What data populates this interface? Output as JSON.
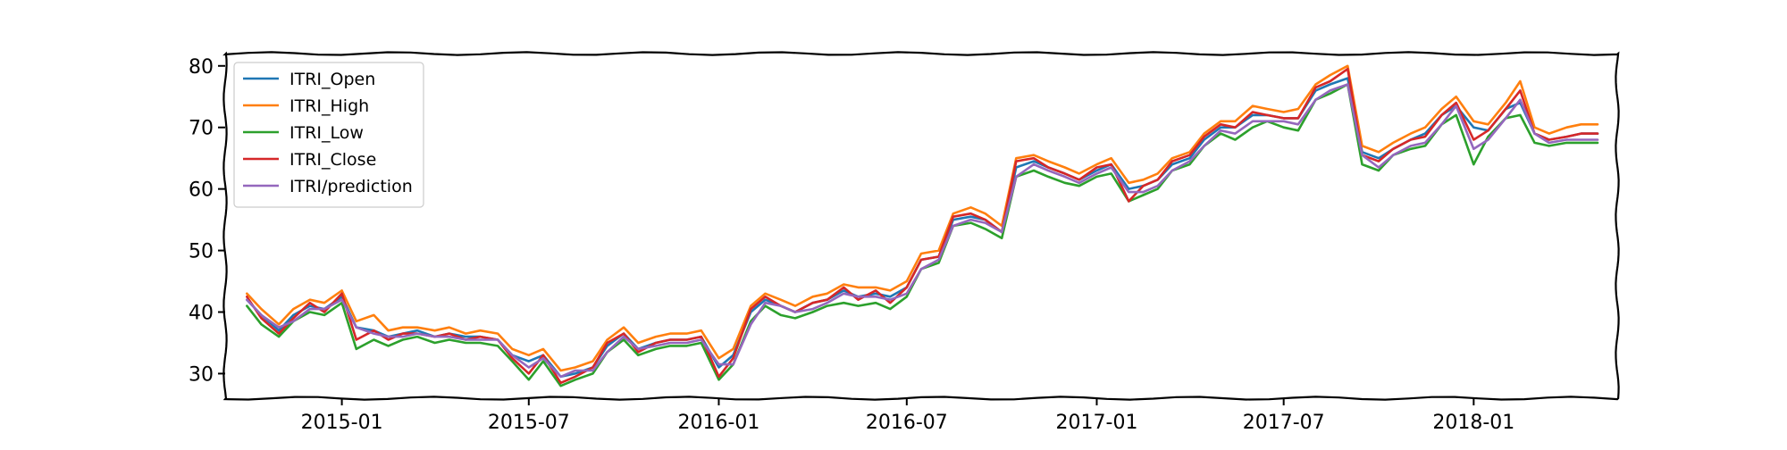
{
  "chart_data": {
    "type": "line",
    "title": "",
    "xlabel": "",
    "ylabel": "",
    "xlim": [
      "2014-09-10",
      "2018-05-20"
    ],
    "ylim": [
      26,
      82
    ],
    "grid": false,
    "legend_position": "top-left",
    "x_tick_labels": [
      "2015-01",
      "2015-07",
      "2016-01",
      "2016-07",
      "2017-01",
      "2017-07",
      "2018-01"
    ],
    "y_tick_labels": [
      "30",
      "40",
      "50",
      "60",
      "70",
      "80"
    ],
    "y_ticks": [
      30,
      40,
      50,
      60,
      70,
      80
    ],
    "colors": {
      "ITRI_Open": "#1f77b4",
      "ITRI_High": "#ff7f0e",
      "ITRI_Low": "#2ca02c",
      "ITRI_Close": "#d62728",
      "ITRI/prediction": "#9467bd"
    },
    "series": [
      {
        "name": "ITRI_Open",
        "x": [
          "2014-10-01",
          "2014-10-15",
          "2014-11-01",
          "2014-11-15",
          "2014-12-01",
          "2014-12-15",
          "2015-01-01",
          "2015-01-15",
          "2015-02-01",
          "2015-02-15",
          "2015-03-01",
          "2015-03-15",
          "2015-04-01",
          "2015-04-15",
          "2015-05-01",
          "2015-05-15",
          "2015-06-01",
          "2015-06-15",
          "2015-07-01",
          "2015-07-15",
          "2015-08-01",
          "2015-08-15",
          "2015-09-01",
          "2015-09-15",
          "2015-10-01",
          "2015-10-15",
          "2015-11-01",
          "2015-11-15",
          "2015-12-01",
          "2015-12-15",
          "2016-01-01",
          "2016-01-15",
          "2016-02-01",
          "2016-02-15",
          "2016-03-01",
          "2016-03-15",
          "2016-04-01",
          "2016-04-15",
          "2016-05-01",
          "2016-05-15",
          "2016-06-01",
          "2016-06-15",
          "2016-07-01",
          "2016-07-15",
          "2016-08-01",
          "2016-08-15",
          "2016-09-01",
          "2016-09-15",
          "2016-10-01",
          "2016-10-15",
          "2016-11-01",
          "2016-11-15",
          "2016-12-01",
          "2016-12-15",
          "2017-01-01",
          "2017-01-15",
          "2017-02-01",
          "2017-02-15",
          "2017-03-01",
          "2017-03-15",
          "2017-04-01",
          "2017-04-15",
          "2017-05-01",
          "2017-05-15",
          "2017-06-01",
          "2017-06-15",
          "2017-07-01",
          "2017-07-15",
          "2017-08-01",
          "2017-08-15",
          "2017-09-01",
          "2017-09-15",
          "2017-10-01",
          "2017-10-15",
          "2017-11-01",
          "2017-11-15",
          "2017-12-01",
          "2017-12-15",
          "2018-01-01",
          "2018-01-15",
          "2018-02-01",
          "2018-02-15",
          "2018-03-01",
          "2018-03-15",
          "2018-04-01",
          "2018-04-15",
          "2018-05-01"
        ],
        "values": [
          42.0,
          39.5,
          37.0,
          39.5,
          41.0,
          40.5,
          42.5,
          37.5,
          37.0,
          36.0,
          36.5,
          37.0,
          36.0,
          36.5,
          36.0,
          36.0,
          35.5,
          33.0,
          32.0,
          33.0,
          29.5,
          30.0,
          31.0,
          34.5,
          36.5,
          34.0,
          35.0,
          35.5,
          35.5,
          36.0,
          31.0,
          33.0,
          40.0,
          42.0,
          41.0,
          40.0,
          41.5,
          42.0,
          43.5,
          42.5,
          43.0,
          42.5,
          44.0,
          48.5,
          49.0,
          55.0,
          55.5,
          55.0,
          53.0,
          63.5,
          64.5,
          63.5,
          62.5,
          61.5,
          63.0,
          64.0,
          60.0,
          60.5,
          61.5,
          64.0,
          65.0,
          68.0,
          70.0,
          70.0,
          72.0,
          72.0,
          71.5,
          71.5,
          76.0,
          77.0,
          78.0,
          66.0,
          65.0,
          66.5,
          68.0,
          69.0,
          72.0,
          73.5,
          70.0,
          69.5,
          73.0,
          74.0,
          69.0,
          68.0,
          68.5,
          69.0,
          69.0
        ]
      },
      {
        "name": "ITRI_High",
        "x": [
          "2014-10-01",
          "2014-10-15",
          "2014-11-01",
          "2014-11-15",
          "2014-12-01",
          "2014-12-15",
          "2015-01-01",
          "2015-01-15",
          "2015-02-01",
          "2015-02-15",
          "2015-03-01",
          "2015-03-15",
          "2015-04-01",
          "2015-04-15",
          "2015-05-01",
          "2015-05-15",
          "2015-06-01",
          "2015-06-15",
          "2015-07-01",
          "2015-07-15",
          "2015-08-01",
          "2015-08-15",
          "2015-09-01",
          "2015-09-15",
          "2015-10-01",
          "2015-10-15",
          "2015-11-01",
          "2015-11-15",
          "2015-12-01",
          "2015-12-15",
          "2016-01-01",
          "2016-01-15",
          "2016-02-01",
          "2016-02-15",
          "2016-03-01",
          "2016-03-15",
          "2016-04-01",
          "2016-04-15",
          "2016-05-01",
          "2016-05-15",
          "2016-06-01",
          "2016-06-15",
          "2016-07-01",
          "2016-07-15",
          "2016-08-01",
          "2016-08-15",
          "2016-09-01",
          "2016-09-15",
          "2016-10-01",
          "2016-10-15",
          "2016-11-01",
          "2016-11-15",
          "2016-12-01",
          "2016-12-15",
          "2017-01-01",
          "2017-01-15",
          "2017-02-01",
          "2017-02-15",
          "2017-03-01",
          "2017-03-15",
          "2017-04-01",
          "2017-04-15",
          "2017-05-01",
          "2017-05-15",
          "2017-06-01",
          "2017-06-15",
          "2017-07-01",
          "2017-07-15",
          "2017-08-01",
          "2017-08-15",
          "2017-09-01",
          "2017-09-15",
          "2017-10-01",
          "2017-10-15",
          "2017-11-01",
          "2017-11-15",
          "2017-12-01",
          "2017-12-15",
          "2018-01-01",
          "2018-01-15",
          "2018-02-01",
          "2018-02-15",
          "2018-03-01",
          "2018-03-15",
          "2018-04-01",
          "2018-04-15",
          "2018-05-01"
        ],
        "values": [
          43.0,
          40.5,
          38.0,
          40.5,
          42.0,
          41.5,
          43.5,
          38.5,
          39.5,
          37.0,
          37.5,
          37.5,
          37.0,
          37.5,
          36.5,
          37.0,
          36.5,
          34.0,
          33.0,
          34.0,
          30.5,
          31.0,
          32.0,
          35.5,
          37.5,
          35.0,
          36.0,
          36.5,
          36.5,
          37.0,
          32.5,
          34.0,
          41.0,
          43.0,
          42.0,
          41.0,
          42.5,
          43.0,
          44.5,
          44.0,
          44.0,
          43.5,
          45.0,
          49.5,
          50.0,
          56.0,
          57.0,
          56.0,
          54.0,
          65.0,
          65.5,
          64.5,
          63.5,
          62.5,
          64.0,
          65.0,
          61.0,
          61.5,
          62.5,
          65.0,
          66.0,
          69.0,
          71.0,
          71.0,
          73.5,
          73.0,
          72.5,
          73.0,
          77.0,
          78.5,
          80.0,
          67.0,
          66.0,
          67.5,
          69.0,
          70.0,
          73.0,
          75.0,
          71.0,
          70.5,
          74.0,
          77.5,
          70.0,
          69.0,
          70.0,
          70.5,
          70.5
        ]
      },
      {
        "name": "ITRI_Low",
        "x": [
          "2014-10-01",
          "2014-10-15",
          "2014-11-01",
          "2014-11-15",
          "2014-12-01",
          "2014-12-15",
          "2015-01-01",
          "2015-01-15",
          "2015-02-01",
          "2015-02-15",
          "2015-03-01",
          "2015-03-15",
          "2015-04-01",
          "2015-04-15",
          "2015-05-01",
          "2015-05-15",
          "2015-06-01",
          "2015-06-15",
          "2015-07-01",
          "2015-07-15",
          "2015-08-01",
          "2015-08-15",
          "2015-09-01",
          "2015-09-15",
          "2015-10-01",
          "2015-10-15",
          "2015-11-01",
          "2015-11-15",
          "2015-12-01",
          "2015-12-15",
          "2016-01-01",
          "2016-01-15",
          "2016-02-01",
          "2016-02-15",
          "2016-03-01",
          "2016-03-15",
          "2016-04-01",
          "2016-04-15",
          "2016-05-01",
          "2016-05-15",
          "2016-06-01",
          "2016-06-15",
          "2016-07-01",
          "2016-07-15",
          "2016-08-01",
          "2016-08-15",
          "2016-09-01",
          "2016-09-15",
          "2016-10-01",
          "2016-10-15",
          "2016-11-01",
          "2016-11-15",
          "2016-12-01",
          "2016-12-15",
          "2017-01-01",
          "2017-01-15",
          "2017-02-01",
          "2017-02-15",
          "2017-03-01",
          "2017-03-15",
          "2017-04-01",
          "2017-04-15",
          "2017-05-01",
          "2017-05-15",
          "2017-06-01",
          "2017-06-15",
          "2017-07-01",
          "2017-07-15",
          "2017-08-01",
          "2017-08-15",
          "2017-09-01",
          "2017-09-15",
          "2017-10-01",
          "2017-10-15",
          "2017-11-01",
          "2017-11-15",
          "2017-12-01",
          "2017-12-15",
          "2018-01-01",
          "2018-01-15",
          "2018-02-01",
          "2018-02-15",
          "2018-03-01",
          "2018-03-15",
          "2018-04-01",
          "2018-04-15",
          "2018-05-01"
        ],
        "values": [
          41.0,
          38.0,
          36.0,
          38.5,
          40.0,
          39.5,
          41.5,
          34.0,
          35.5,
          34.5,
          35.5,
          36.0,
          35.0,
          35.5,
          35.0,
          35.0,
          34.5,
          32.0,
          29.0,
          32.0,
          28.0,
          29.0,
          30.0,
          33.5,
          35.5,
          33.0,
          34.0,
          34.5,
          34.5,
          35.0,
          29.0,
          31.5,
          38.5,
          41.0,
          39.5,
          39.0,
          40.0,
          41.0,
          41.5,
          41.0,
          41.5,
          40.5,
          42.5,
          47.0,
          48.0,
          54.0,
          54.5,
          53.5,
          52.0,
          62.0,
          63.0,
          62.0,
          61.0,
          60.5,
          62.0,
          62.5,
          58.0,
          59.0,
          60.0,
          63.0,
          64.0,
          67.0,
          69.0,
          68.0,
          70.0,
          71.0,
          70.0,
          69.5,
          74.5,
          75.5,
          77.0,
          64.0,
          63.0,
          65.5,
          66.5,
          67.0,
          70.5,
          72.0,
          64.0,
          68.5,
          71.5,
          72.0,
          67.5,
          67.0,
          67.5,
          67.5,
          67.5
        ]
      },
      {
        "name": "ITRI_Close",
        "x": [
          "2014-10-01",
          "2014-10-15",
          "2014-11-01",
          "2014-11-15",
          "2014-12-01",
          "2014-12-15",
          "2015-01-01",
          "2015-01-15",
          "2015-02-01",
          "2015-02-15",
          "2015-03-01",
          "2015-03-15",
          "2015-04-01",
          "2015-04-15",
          "2015-05-01",
          "2015-05-15",
          "2015-06-01",
          "2015-06-15",
          "2015-07-01",
          "2015-07-15",
          "2015-08-01",
          "2015-08-15",
          "2015-09-01",
          "2015-09-15",
          "2015-10-01",
          "2015-10-15",
          "2015-11-01",
          "2015-11-15",
          "2015-12-01",
          "2015-12-15",
          "2016-01-01",
          "2016-01-15",
          "2016-02-01",
          "2016-02-15",
          "2016-03-01",
          "2016-03-15",
          "2016-04-01",
          "2016-04-15",
          "2016-05-01",
          "2016-05-15",
          "2016-06-01",
          "2016-06-15",
          "2016-07-01",
          "2016-07-15",
          "2016-08-01",
          "2016-08-15",
          "2016-09-01",
          "2016-09-15",
          "2016-10-01",
          "2016-10-15",
          "2016-11-01",
          "2016-11-15",
          "2016-12-01",
          "2016-12-15",
          "2017-01-01",
          "2017-01-15",
          "2017-02-01",
          "2017-02-15",
          "2017-03-01",
          "2017-03-15",
          "2017-04-01",
          "2017-04-15",
          "2017-05-01",
          "2017-05-15",
          "2017-06-01",
          "2017-06-15",
          "2017-07-01",
          "2017-07-15",
          "2017-08-01",
          "2017-08-15",
          "2017-09-01",
          "2017-09-15",
          "2017-10-01",
          "2017-10-15",
          "2017-11-01",
          "2017-11-15",
          "2017-12-01",
          "2017-12-15",
          "2018-01-01",
          "2018-01-15",
          "2018-02-01",
          "2018-02-15",
          "2018-03-01",
          "2018-03-15",
          "2018-04-01",
          "2018-04-15",
          "2018-05-01"
        ],
        "values": [
          42.5,
          39.0,
          36.5,
          39.0,
          41.5,
          40.0,
          43.0,
          35.5,
          37.0,
          35.5,
          36.5,
          36.5,
          36.0,
          36.5,
          35.5,
          36.0,
          35.5,
          32.5,
          30.0,
          33.0,
          28.5,
          29.5,
          31.0,
          35.0,
          36.5,
          33.5,
          35.0,
          35.5,
          35.5,
          36.0,
          29.5,
          32.5,
          40.5,
          42.5,
          41.0,
          40.0,
          41.5,
          42.0,
          44.0,
          42.0,
          43.5,
          41.5,
          44.0,
          48.5,
          49.0,
          55.5,
          56.0,
          55.0,
          53.0,
          64.5,
          65.0,
          63.5,
          62.5,
          61.5,
          63.5,
          64.0,
          58.0,
          60.5,
          61.5,
          64.5,
          65.5,
          68.5,
          70.5,
          70.0,
          72.5,
          72.0,
          71.5,
          71.5,
          76.5,
          77.5,
          79.5,
          65.5,
          64.5,
          66.5,
          68.0,
          68.5,
          72.0,
          74.0,
          68.0,
          69.5,
          73.0,
          76.0,
          69.0,
          68.0,
          68.5,
          69.0,
          69.0
        ]
      },
      {
        "name": "ITRI/prediction",
        "x": [
          "2014-10-01",
          "2014-10-15",
          "2014-11-01",
          "2014-11-15",
          "2014-12-01",
          "2014-12-15",
          "2015-01-01",
          "2015-01-15",
          "2015-02-01",
          "2015-02-15",
          "2015-03-01",
          "2015-03-15",
          "2015-04-01",
          "2015-04-15",
          "2015-05-01",
          "2015-05-15",
          "2015-06-01",
          "2015-06-15",
          "2015-07-01",
          "2015-07-15",
          "2015-08-01",
          "2015-08-15",
          "2015-09-01",
          "2015-09-15",
          "2015-10-01",
          "2015-10-15",
          "2015-11-01",
          "2015-11-15",
          "2015-12-01",
          "2015-12-15",
          "2016-01-01",
          "2016-01-15",
          "2016-02-01",
          "2016-02-15",
          "2016-03-01",
          "2016-03-15",
          "2016-04-01",
          "2016-04-15",
          "2016-05-01",
          "2016-05-15",
          "2016-06-01",
          "2016-06-15",
          "2016-07-01",
          "2016-07-15",
          "2016-08-01",
          "2016-08-15",
          "2016-09-01",
          "2016-09-15",
          "2016-10-01",
          "2016-10-15",
          "2016-11-01",
          "2016-11-15",
          "2016-12-01",
          "2016-12-15",
          "2017-01-01",
          "2017-01-15",
          "2017-02-01",
          "2017-02-15",
          "2017-03-01",
          "2017-03-15",
          "2017-04-01",
          "2017-04-15",
          "2017-05-01",
          "2017-05-15",
          "2017-06-01",
          "2017-06-15",
          "2017-07-01",
          "2017-07-15",
          "2017-08-01",
          "2017-08-15",
          "2017-09-01",
          "2017-09-15",
          "2017-10-01",
          "2017-10-15",
          "2017-11-01",
          "2017-11-15",
          "2017-12-01",
          "2017-12-15",
          "2018-01-01",
          "2018-01-15",
          "2018-02-01",
          "2018-02-15",
          "2018-03-01",
          "2018-03-15",
          "2018-04-01",
          "2018-04-15",
          "2018-05-01"
        ],
        "values": [
          42.0,
          39.5,
          37.5,
          38.5,
          40.5,
          40.5,
          42.0,
          37.5,
          36.5,
          36.0,
          36.0,
          36.5,
          36.0,
          36.0,
          35.5,
          35.5,
          35.5,
          33.0,
          31.0,
          32.5,
          29.5,
          30.5,
          30.5,
          33.5,
          36.0,
          34.0,
          34.5,
          35.0,
          35.0,
          35.5,
          31.5,
          31.5,
          38.0,
          41.5,
          41.0,
          40.0,
          40.5,
          41.5,
          43.0,
          42.5,
          42.5,
          42.0,
          43.0,
          47.0,
          48.5,
          54.0,
          55.0,
          54.5,
          53.0,
          62.0,
          64.0,
          63.0,
          62.0,
          61.0,
          62.5,
          63.5,
          59.5,
          59.5,
          60.5,
          63.0,
          64.5,
          67.0,
          69.5,
          69.0,
          71.0,
          71.0,
          71.0,
          70.5,
          74.5,
          76.0,
          77.0,
          65.5,
          63.5,
          65.5,
          67.0,
          67.5,
          70.5,
          73.5,
          66.5,
          68.0,
          71.5,
          74.5,
          69.0,
          67.5,
          68.0,
          68.0,
          68.0
        ]
      }
    ]
  }
}
